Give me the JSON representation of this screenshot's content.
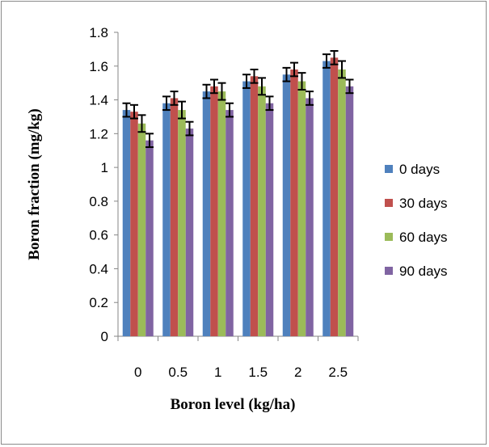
{
  "chart_data": {
    "type": "bar",
    "title": "",
    "xlabel": "Boron level (kg/ha)",
    "ylabel": "Boron fraction (mg/kg)",
    "ylim": [
      0,
      1.8
    ],
    "yticks": [
      "0",
      "0.2",
      "0.4",
      "0.6",
      "0.8",
      "1",
      "1.2",
      "1.4",
      "1.6",
      "1.8"
    ],
    "categories": [
      "0",
      "0.5",
      "1",
      "1.5",
      "2",
      "2.5"
    ],
    "series": [
      {
        "name": "0 days",
        "color": "#4f81bd",
        "values": [
          1.34,
          1.38,
          1.45,
          1.51,
          1.55,
          1.63
        ],
        "errors": [
          0.04,
          0.04,
          0.04,
          0.04,
          0.04,
          0.04
        ]
      },
      {
        "name": "30 days",
        "color": "#c0504d",
        "values": [
          1.33,
          1.41,
          1.48,
          1.54,
          1.58,
          1.65
        ],
        "errors": [
          0.04,
          0.04,
          0.04,
          0.04,
          0.04,
          0.04
        ]
      },
      {
        "name": "60 days",
        "color": "#9bbb59",
        "values": [
          1.26,
          1.34,
          1.45,
          1.48,
          1.51,
          1.58
        ],
        "errors": [
          0.05,
          0.05,
          0.05,
          0.05,
          0.05,
          0.05
        ]
      },
      {
        "name": "90 days",
        "color": "#8064a2",
        "values": [
          1.16,
          1.23,
          1.34,
          1.38,
          1.41,
          1.48
        ],
        "errors": [
          0.04,
          0.04,
          0.04,
          0.04,
          0.04,
          0.04
        ]
      }
    ],
    "error_bars": true,
    "grid": false,
    "legend_position": "right"
  }
}
